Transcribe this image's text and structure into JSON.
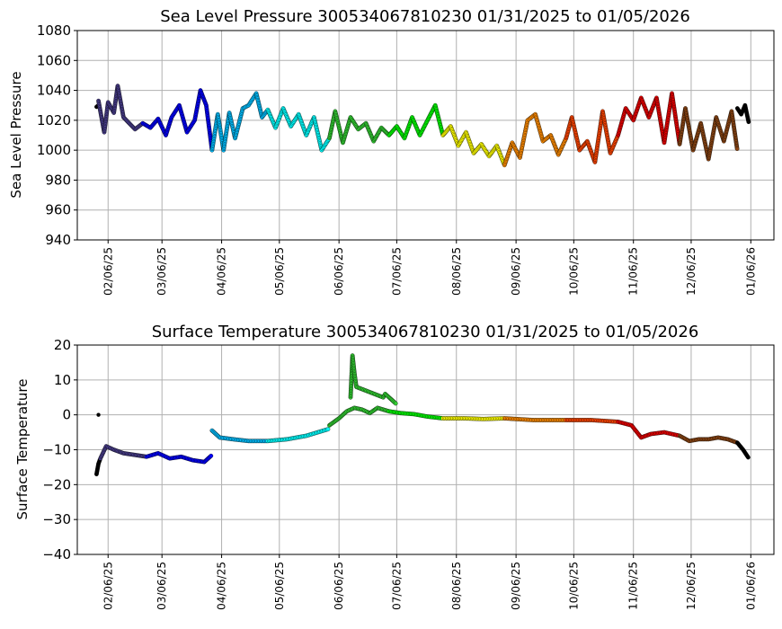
{
  "chart_data": [
    {
      "type": "scatter",
      "title": "Sea Level Pressure 300534067810230  01/31/2025 to 01/05/2026",
      "xlabel": "",
      "ylabel": "Sea Level Pressure",
      "ylim": [
        940,
        1080
      ],
      "yticks": [
        "940",
        "960",
        "980",
        "1000",
        "1020",
        "1040",
        "1060",
        "1080"
      ],
      "grid": true,
      "x_tick_labels": [
        "02/06/25",
        "03/06/25",
        "04/06/25",
        "05/06/25",
        "06/06/25",
        "07/06/25",
        "08/06/25",
        "09/06/25",
        "10/06/25",
        "11/06/25",
        "12/06/25",
        "01/06/26"
      ],
      "series": [
        {
          "color": "#000000",
          "x": [
            "2025-01-31",
            "2025-02-01"
          ],
          "y": [
            1029,
            1030
          ]
        },
        {
          "color": "#483d8b",
          "x": [
            "2025-02-01",
            "2025-02-04",
            "2025-02-06",
            "2025-02-09",
            "2025-02-11",
            "2025-02-14",
            "2025-02-17",
            "2025-02-20",
            "2025-02-24"
          ],
          "y": [
            1033,
            1012,
            1032,
            1025,
            1043,
            1022,
            1018,
            1014,
            1018
          ]
        },
        {
          "color": "#0000ff",
          "x": [
            "2025-02-24",
            "2025-02-28",
            "2025-03-04",
            "2025-03-08",
            "2025-03-11",
            "2025-03-15",
            "2025-03-19",
            "2025-03-23",
            "2025-03-26",
            "2025-03-29",
            "2025-04-01"
          ],
          "y": [
            1018,
            1015,
            1021,
            1010,
            1022,
            1030,
            1012,
            1020,
            1040,
            1030,
            1000
          ]
        },
        {
          "color": "#00bfff",
          "x": [
            "2025-04-01",
            "2025-04-04",
            "2025-04-07",
            "2025-04-10",
            "2025-04-13",
            "2025-04-17",
            "2025-04-20",
            "2025-04-24",
            "2025-04-27",
            "2025-04-30"
          ],
          "y": [
            1000,
            1024,
            1000,
            1025,
            1008,
            1028,
            1030,
            1038,
            1022,
            1027
          ]
        },
        {
          "color": "#00ffff",
          "x": [
            "2025-04-30",
            "2025-05-04",
            "2025-05-08",
            "2025-05-12",
            "2025-05-16",
            "2025-05-20",
            "2025-05-24",
            "2025-05-28",
            "2025-06-01"
          ],
          "y": [
            1027,
            1015,
            1028,
            1016,
            1024,
            1010,
            1022,
            1000,
            1008
          ]
        },
        {
          "color": "#32cd32",
          "x": [
            "2025-06-01",
            "2025-06-04",
            "2025-06-08",
            "2025-06-12",
            "2025-06-16",
            "2025-06-20",
            "2025-06-24",
            "2025-06-28",
            "2025-07-02"
          ],
          "y": [
            1008,
            1026,
            1005,
            1022,
            1014,
            1018,
            1006,
            1015,
            1010
          ]
        },
        {
          "color": "#00ff00",
          "x": [
            "2025-07-02",
            "2025-07-06",
            "2025-07-10",
            "2025-07-14",
            "2025-07-18",
            "2025-07-22",
            "2025-07-26",
            "2025-07-30"
          ],
          "y": [
            1010,
            1016,
            1008,
            1022,
            1010,
            1020,
            1030,
            1010
          ]
        },
        {
          "color": "#ffff00",
          "x": [
            "2025-07-30",
            "2025-08-03",
            "2025-08-07",
            "2025-08-11",
            "2025-08-15",
            "2025-08-19",
            "2025-08-23",
            "2025-08-27",
            "2025-08-31"
          ],
          "y": [
            1010,
            1016,
            1003,
            1012,
            998,
            1004,
            996,
            1003,
            990
          ]
        },
        {
          "color": "#ff8c00",
          "x": [
            "2025-08-31",
            "2025-09-04",
            "2025-09-08",
            "2025-09-12",
            "2025-09-16",
            "2025-09-20",
            "2025-09-24",
            "2025-09-28",
            "2025-10-02"
          ],
          "y": [
            990,
            1005,
            995,
            1020,
            1024,
            1006,
            1010,
            997,
            1008
          ]
        },
        {
          "color": "#ff4500",
          "x": [
            "2025-10-02",
            "2025-10-05",
            "2025-10-09",
            "2025-10-13",
            "2025-10-17",
            "2025-10-21",
            "2025-10-25",
            "2025-10-29"
          ],
          "y": [
            1008,
            1022,
            1000,
            1006,
            992,
            1026,
            998,
            1010
          ]
        },
        {
          "color": "#ee0000",
          "x": [
            "2025-10-29",
            "2025-11-02",
            "2025-11-06",
            "2025-11-10",
            "2025-11-14",
            "2025-11-18",
            "2025-11-22",
            "2025-11-26",
            "2025-11-30"
          ],
          "y": [
            1010,
            1028,
            1020,
            1035,
            1022,
            1035,
            1005,
            1038,
            1004
          ]
        },
        {
          "color": "#8b4513",
          "x": [
            "2025-11-30",
            "2025-12-03",
            "2025-12-07",
            "2025-12-11",
            "2025-12-15",
            "2025-12-19",
            "2025-12-23",
            "2025-12-27",
            "2025-12-30"
          ],
          "y": [
            1004,
            1028,
            1000,
            1018,
            994,
            1022,
            1006,
            1026,
            1000
          ]
        },
        {
          "color": "#000000",
          "x": [
            "2025-12-30",
            "2026-01-01",
            "2026-01-03",
            "2026-01-05"
          ],
          "y": [
            1028,
            1024,
            1030,
            1018
          ]
        }
      ]
    },
    {
      "type": "scatter",
      "title": "Surface Temperature 300534067810230  01/31/2025 to 01/05/2026",
      "xlabel": "",
      "ylabel": "Surface Temperature",
      "ylim": [
        -40,
        20
      ],
      "yticks": [
        "−40",
        "−30",
        "−20",
        "−10",
        "0",
        "10",
        "20"
      ],
      "grid": true,
      "x_tick_labels": [
        "02/06/25",
        "03/06/25",
        "04/06/25",
        "05/06/25",
        "06/06/25",
        "07/06/25",
        "08/06/25",
        "09/06/25",
        "10/06/25",
        "11/06/25",
        "12/06/25",
        "01/06/26"
      ],
      "series": [
        {
          "color": "#000000",
          "x": [
            "2025-01-31",
            "2025-02-01",
            "2025-02-02"
          ],
          "y": [
            -17,
            -14,
            -12.5
          ]
        },
        {
          "color": "#000000",
          "x": [
            "2025-02-01"
          ],
          "y": [
            0
          ]
        },
        {
          "color": "#483d8b",
          "x": [
            "2025-02-02",
            "2025-02-05",
            "2025-02-09",
            "2025-02-14",
            "2025-02-20",
            "2025-02-26"
          ],
          "y": [
            -12.5,
            -9,
            -10,
            -11,
            -11.5,
            -12
          ]
        },
        {
          "color": "#0000ff",
          "x": [
            "2025-02-26",
            "2025-03-04",
            "2025-03-10",
            "2025-03-16",
            "2025-03-22",
            "2025-03-28",
            "2025-04-01"
          ],
          "y": [
            -12,
            -11,
            -12.5,
            -12,
            -13,
            -13.5,
            -11.5
          ]
        },
        {
          "color": "#00bfff",
          "x": [
            "2025-04-01",
            "2025-04-05",
            "2025-04-12",
            "2025-04-20",
            "2025-04-30"
          ],
          "y": [
            -4.5,
            -6.5,
            -7,
            -7.5,
            -7.5
          ]
        },
        {
          "color": "#00ffff",
          "x": [
            "2025-04-30",
            "2025-05-10",
            "2025-05-20",
            "2025-06-01"
          ],
          "y": [
            -7.5,
            -7,
            -6,
            -4
          ]
        },
        {
          "color": "#32cd32",
          "x": [
            "2025-06-01",
            "2025-06-06",
            "2025-06-10",
            "2025-06-14",
            "2025-06-18",
            "2025-06-22",
            "2025-06-26",
            "2025-07-02"
          ],
          "y": [
            -3,
            -1,
            1,
            2,
            1.5,
            0.5,
            2,
            1
          ]
        },
        {
          "color": "#32cd32",
          "x": [
            "2025-06-12",
            "2025-06-13",
            "2025-06-14",
            "2025-06-15",
            "2025-06-29",
            "2025-06-30",
            "2025-07-06"
          ],
          "y": [
            5,
            17,
            12,
            8,
            5,
            6,
            3
          ]
        },
        {
          "color": "#00ff00",
          "x": [
            "2025-07-02",
            "2025-07-08",
            "2025-07-15",
            "2025-07-22",
            "2025-07-30"
          ],
          "y": [
            1,
            0.5,
            0.2,
            -0.5,
            -1
          ]
        },
        {
          "color": "#ffff00",
          "x": [
            "2025-07-30",
            "2025-08-10",
            "2025-08-20",
            "2025-08-31"
          ],
          "y": [
            -1,
            -1,
            -1.2,
            -1
          ]
        },
        {
          "color": "#ff8c00",
          "x": [
            "2025-08-31",
            "2025-09-15",
            "2025-10-02"
          ],
          "y": [
            -1,
            -1.5,
            -1.5
          ]
        },
        {
          "color": "#ff4500",
          "x": [
            "2025-10-02",
            "2025-10-15",
            "2025-10-29"
          ],
          "y": [
            -1.5,
            -1.5,
            -2
          ]
        },
        {
          "color": "#ee0000",
          "x": [
            "2025-10-29",
            "2025-11-05",
            "2025-11-10",
            "2025-11-15",
            "2025-11-22",
            "2025-11-30"
          ],
          "y": [
            -2,
            -3,
            -6.5,
            -5.5,
            -5,
            -6
          ]
        },
        {
          "color": "#8b4513",
          "x": [
            "2025-11-30",
            "2025-12-05",
            "2025-12-10",
            "2025-12-15",
            "2025-12-20",
            "2025-12-25",
            "2025-12-30"
          ],
          "y": [
            -6,
            -7.5,
            -7,
            -7,
            -6.5,
            -7,
            -8
          ]
        },
        {
          "color": "#000000",
          "x": [
            "2025-12-30",
            "2026-01-02",
            "2026-01-05"
          ],
          "y": [
            -8,
            -10,
            -12.5
          ]
        }
      ]
    }
  ]
}
